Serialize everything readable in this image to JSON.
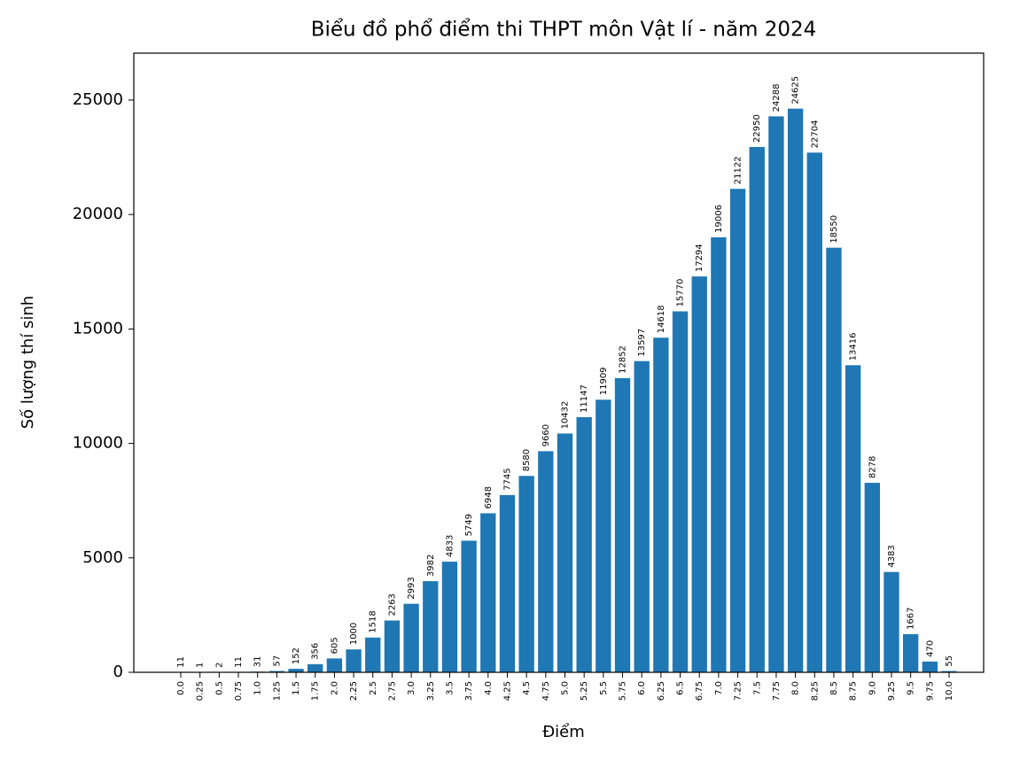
{
  "chart_data": {
    "type": "bar",
    "title": "Biểu đồ phổ điểm thi THPT môn Vật lí - năm 2024",
    "x_label": "Điểm",
    "y_label": "Số lượng thí sinh",
    "categories": [
      "0.0",
      "0.25",
      "0.5",
      "0.75",
      "1.0",
      "1.25",
      "1.5",
      "1.75",
      "2.0",
      "2.25",
      "2.5",
      "2.75",
      "3.0",
      "3.25",
      "3.5",
      "3.75",
      "4.0",
      "4.25",
      "4.5",
      "4.75",
      "5.0",
      "5.25",
      "5.5",
      "5.75",
      "6.0",
      "6.25",
      "6.5",
      "6.75",
      "7.0",
      "7.25",
      "7.5",
      "7.75",
      "8.0",
      "8.25",
      "8.5",
      "8.75",
      "9.0",
      "9.25",
      "9.5",
      "9.75",
      "10.0"
    ],
    "values": [
      11,
      1,
      2,
      11,
      31,
      57,
      152,
      356,
      605,
      1000,
      1518,
      2263,
      2993,
      3982,
      4833,
      5749,
      6948,
      7745,
      8580,
      9660,
      10432,
      11147,
      11909,
      12852,
      13597,
      14618,
      15770,
      17294,
      19006,
      21122,
      22950,
      24288,
      24625,
      22704,
      18550,
      13416,
      8278,
      4383,
      1667,
      470,
      55
    ],
    "color": "#1f77b4",
    "ylim": [
      0,
      27050
    ],
    "yticks": [
      0,
      5000,
      10000,
      15000,
      20000,
      25000
    ],
    "grid": false
  }
}
